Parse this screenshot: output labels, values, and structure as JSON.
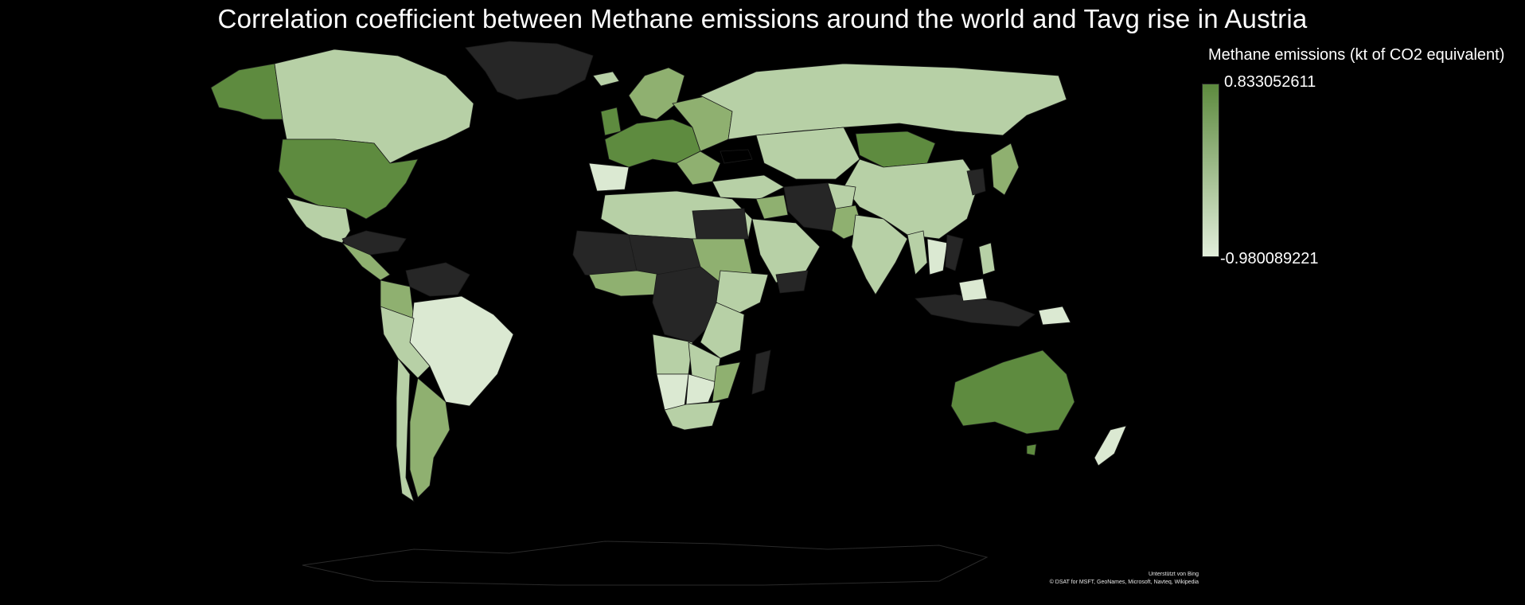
{
  "title": "Correlation coefficient between Methane emissions around the world and Tavg rise in Austria",
  "legend": {
    "title": "Methane emissions (kt of CO2 equivalent)",
    "max_label": "0.833052611",
    "min_label": "-0.980089221",
    "max_value": 0.833052611,
    "min_value": -0.980089221,
    "color_high": "#5d8a3e",
    "color_low": "#e2eedb"
  },
  "colors": {
    "background": "#000000",
    "no_data": "#262626",
    "dark_green": "#5e8b3f",
    "mid_green": "#8fb070",
    "light_green": "#b7d0a6",
    "pale_green": "#dbe9d2"
  },
  "attribution": {
    "line1": "Unterstützt von Bing",
    "line2": "© DSAT for MSFT, GeoNames, Microsoft, Navteq, Wikipedia"
  }
}
